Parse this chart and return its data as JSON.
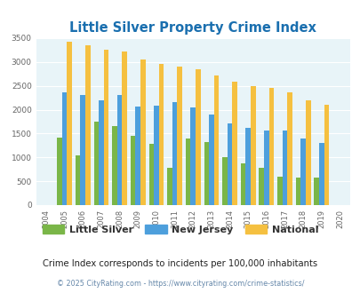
{
  "title": "Little Silver Property Crime Index",
  "years": [
    2004,
    2005,
    2006,
    2007,
    2008,
    2009,
    2010,
    2011,
    2012,
    2013,
    2014,
    2015,
    2016,
    2017,
    2018,
    2019,
    2020
  ],
  "little_silver": [
    0,
    1420,
    1050,
    1750,
    1650,
    1450,
    1280,
    775,
    1390,
    1320,
    1000,
    880,
    775,
    590,
    580,
    575,
    0
  ],
  "new_jersey": [
    0,
    2360,
    2300,
    2200,
    2310,
    2070,
    2075,
    2160,
    2050,
    1900,
    1720,
    1610,
    1555,
    1555,
    1390,
    1310,
    0
  ],
  "national": [
    0,
    3420,
    3340,
    3265,
    3215,
    3055,
    2960,
    2905,
    2855,
    2720,
    2590,
    2490,
    2450,
    2370,
    2200,
    2110,
    0
  ],
  "little_silver_color": "#7ab648",
  "new_jersey_color": "#4d9fdc",
  "national_color": "#f5c040",
  "background_color": "#e8f4f8",
  "title_color": "#1a6faf",
  "ylabel_max": 3500,
  "ylabel_step": 500,
  "subtitle": "Crime Index corresponds to incidents per 100,000 inhabitants",
  "footer": "© 2025 CityRating.com - https://www.cityrating.com/crime-statistics/",
  "subtitle_color": "#222222",
  "footer_color": "#6688aa",
  "legend_labels": [
    "Little Silver",
    "New Jersey",
    "National"
  ],
  "figsize": [
    4.06,
    3.3
  ],
  "dpi": 100
}
